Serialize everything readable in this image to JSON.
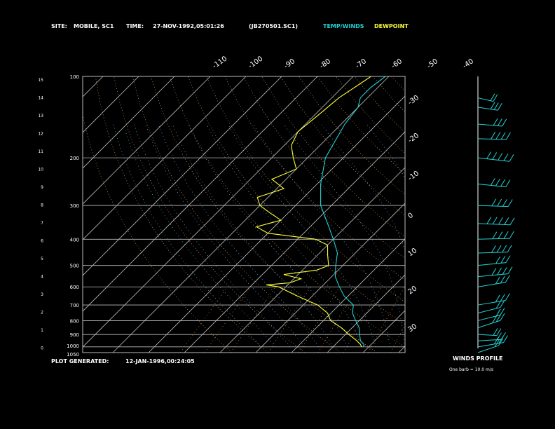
{
  "header": {
    "site_label": "SITE:",
    "site_value": "MOBILE, SC1",
    "time_label": "TIME:",
    "time_value": "27-NOV-1992,05:01:26",
    "file_id": "(JB270501.SC1)",
    "temp_legend": "TEMP/WINDS",
    "dew_legend": "DEWPOINT"
  },
  "footer": {
    "generated_label": "PLOT GENERATED:",
    "generated_value": "12-JAN-1996,00:24:05",
    "winds_title": "WINDS PROFILE",
    "winds_note": "One barb = 10.0 m/s"
  },
  "colors": {
    "temperature": "#22d3d3",
    "dewpoint": "#ffff33",
    "isobars": "#bbbbbb",
    "isotherms": "#bbbbbb",
    "dry_adiabats": "#d8a060",
    "moist_adiabats": "#66bbee",
    "mixing_ratio": "#d08030"
  },
  "chart_data": {
    "type": "line",
    "x_ticks": [
      "-110",
      "-100",
      "-90",
      "-80",
      "-70",
      "-60",
      "-50",
      "-40"
    ],
    "right_ticks": [
      "-30",
      "-20",
      "-10",
      "0",
      "10",
      "20",
      "30"
    ],
    "pressure_ticks": [
      "100",
      "200",
      "300",
      "400",
      "500",
      "600",
      "700",
      "800",
      "900",
      "1000",
      "1050"
    ],
    "height_ticks": [
      "15",
      "14",
      "13",
      "12",
      "11",
      "10",
      "9",
      "8",
      "7",
      "6",
      "5",
      "4",
      "3",
      "2",
      "1",
      "0"
    ],
    "series": [
      {
        "name": "TEMP/WINDS",
        "points": [
          [
            1000,
            8.5
          ],
          [
            980,
            8
          ],
          [
            950,
            6
          ],
          [
            900,
            4
          ],
          [
            850,
            2
          ],
          [
            800,
            -1
          ],
          [
            750,
            -4
          ],
          [
            700,
            -6
          ],
          [
            650,
            -11
          ],
          [
            600,
            -15
          ],
          [
            550,
            -19
          ],
          [
            500,
            -22
          ],
          [
            450,
            -25
          ],
          [
            400,
            -30
          ],
          [
            350,
            -36
          ],
          [
            300,
            -43
          ],
          [
            250,
            -49
          ],
          [
            200,
            -55
          ],
          [
            150,
            -59
          ],
          [
            130,
            -60
          ],
          [
            120,
            -62
          ],
          [
            110,
            -62
          ],
          [
            100,
            -61
          ]
        ]
      },
      {
        "name": "DEWPOINT",
        "points": [
          [
            1000,
            8
          ],
          [
            980,
            7
          ],
          [
            950,
            5
          ],
          [
            900,
            1
          ],
          [
            850,
            -3
          ],
          [
            800,
            -8
          ],
          [
            750,
            -11
          ],
          [
            700,
            -16
          ],
          [
            650,
            -24
          ],
          [
            600,
            -32
          ],
          [
            590,
            -36
          ],
          [
            580,
            -30
          ],
          [
            560,
            -28
          ],
          [
            540,
            -34
          ],
          [
            520,
            -26
          ],
          [
            500,
            -24
          ],
          [
            460,
            -27
          ],
          [
            420,
            -30
          ],
          [
            400,
            -35
          ],
          [
            380,
            -50
          ],
          [
            360,
            -55
          ],
          [
            340,
            -50
          ],
          [
            320,
            -55
          ],
          [
            300,
            -60
          ],
          [
            280,
            -63
          ],
          [
            260,
            -58
          ],
          [
            240,
            -64
          ],
          [
            220,
            -60
          ],
          [
            200,
            -64
          ],
          [
            180,
            -68
          ],
          [
            160,
            -70
          ],
          [
            140,
            -69
          ],
          [
            120,
            -68
          ],
          [
            100,
            -65
          ]
        ]
      }
    ],
    "winds": [
      [
        1050,
        240,
        20
      ],
      [
        1000,
        260,
        25
      ],
      [
        950,
        280,
        20
      ],
      [
        900,
        300,
        15
      ],
      [
        850,
        240,
        25
      ],
      [
        800,
        250,
        20
      ],
      [
        750,
        250,
        20
      ],
      [
        700,
        260,
        30
      ],
      [
        600,
        260,
        30
      ],
      [
        550,
        270,
        35
      ],
      [
        500,
        270,
        30
      ],
      [
        450,
        280,
        35
      ],
      [
        400,
        280,
        40
      ],
      [
        350,
        290,
        45
      ],
      [
        300,
        290,
        40
      ],
      [
        250,
        300,
        40
      ],
      [
        200,
        300,
        50
      ],
      [
        170,
        290,
        35
      ],
      [
        150,
        300,
        30
      ],
      [
        130,
        310,
        25
      ],
      [
        120,
        320,
        20
      ]
    ]
  }
}
